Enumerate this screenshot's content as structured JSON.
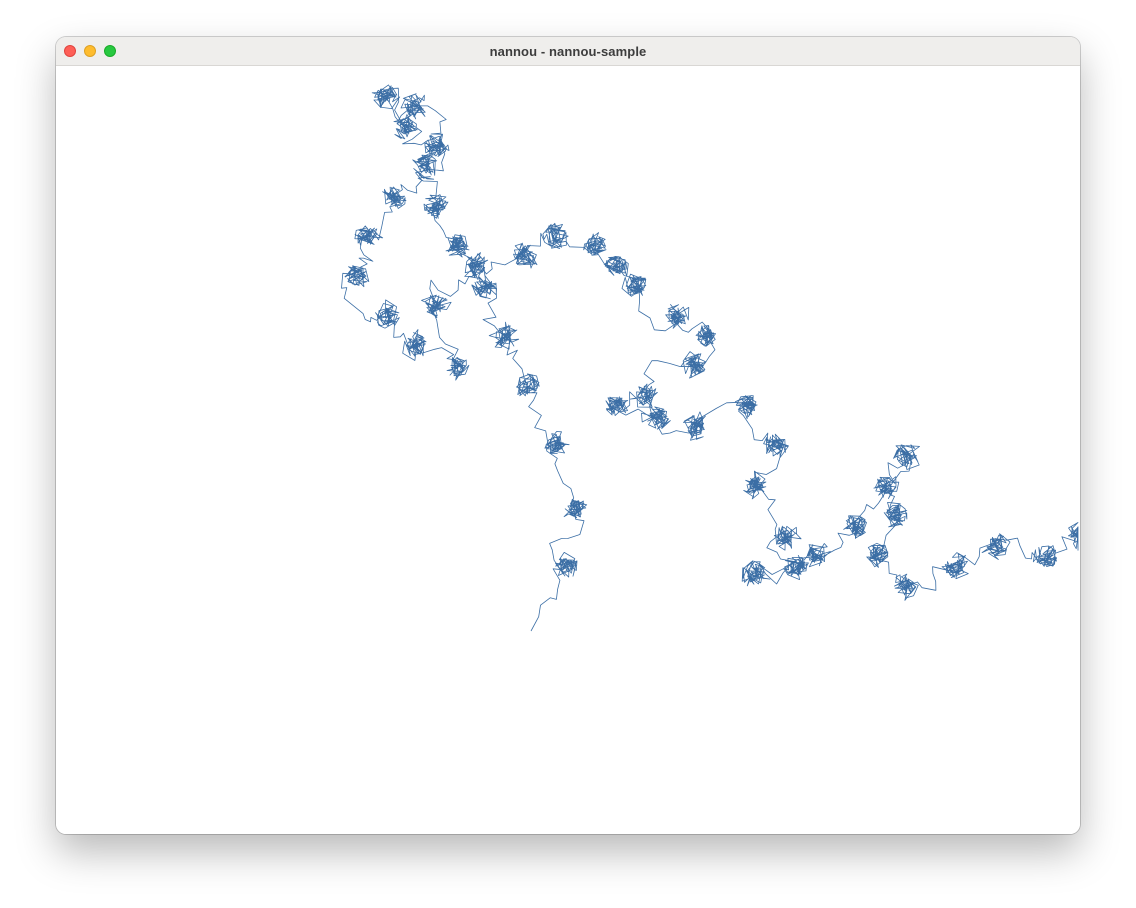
{
  "window": {
    "title": "nannou - nannou-sample",
    "controls": {
      "close": "close-button",
      "minimize": "minimize-button",
      "zoom": "zoom-button"
    }
  },
  "canvas": {
    "background": "#ffffff",
    "stroke_color": "#3b6ea5",
    "drawing": "random-walk-path"
  }
}
